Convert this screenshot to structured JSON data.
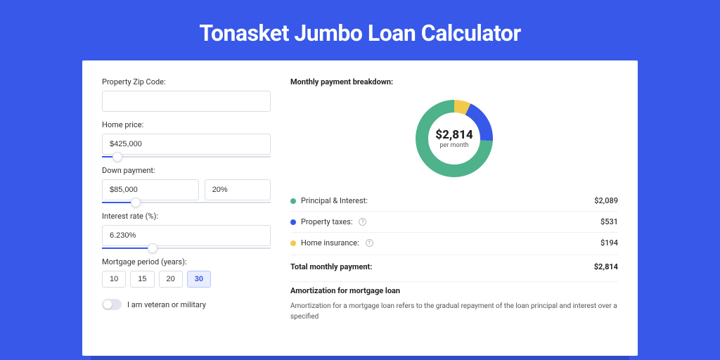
{
  "title": "Tonasket Jumbo Loan Calculator",
  "colors": {
    "brand": "#3858e9",
    "principal": "#4eb28a",
    "taxes": "#3858e9",
    "insurance": "#f2c94c"
  },
  "form": {
    "zip": {
      "label": "Property Zip Code:",
      "value": ""
    },
    "price": {
      "label": "Home price:",
      "value": "$425,000",
      "slider_pct": 9
    },
    "down": {
      "label": "Down payment:",
      "amount": "$85,000",
      "pct": "20%",
      "slider_pct": 20
    },
    "rate": {
      "label": "Interest rate (%):",
      "value": "6.230%",
      "slider_pct": 30
    },
    "period": {
      "label": "Mortgage period (years):",
      "options": [
        "10",
        "15",
        "20",
        "30"
      ],
      "active": "30"
    },
    "veteran": {
      "label": "I am veteran or military",
      "on": false
    }
  },
  "breakdown": {
    "title": "Monthly payment breakdown:",
    "center_amount": "$2,814",
    "center_sub": "per month",
    "items": [
      {
        "key": "principal",
        "label": "Principal & Interest:",
        "value": "$2,089",
        "info": false,
        "pct": 74
      },
      {
        "key": "taxes",
        "label": "Property taxes:",
        "value": "$531",
        "info": true,
        "pct": 19
      },
      {
        "key": "insurance",
        "label": "Home insurance:",
        "value": "$194",
        "info": true,
        "pct": 7
      }
    ],
    "total_label": "Total monthly payment:",
    "total_value": "$2,814"
  },
  "amortization": {
    "title": "Amortization for mortgage loan",
    "text": "Amortization for a mortgage loan refers to the gradual repayment of the loan principal and interest over a specified"
  }
}
